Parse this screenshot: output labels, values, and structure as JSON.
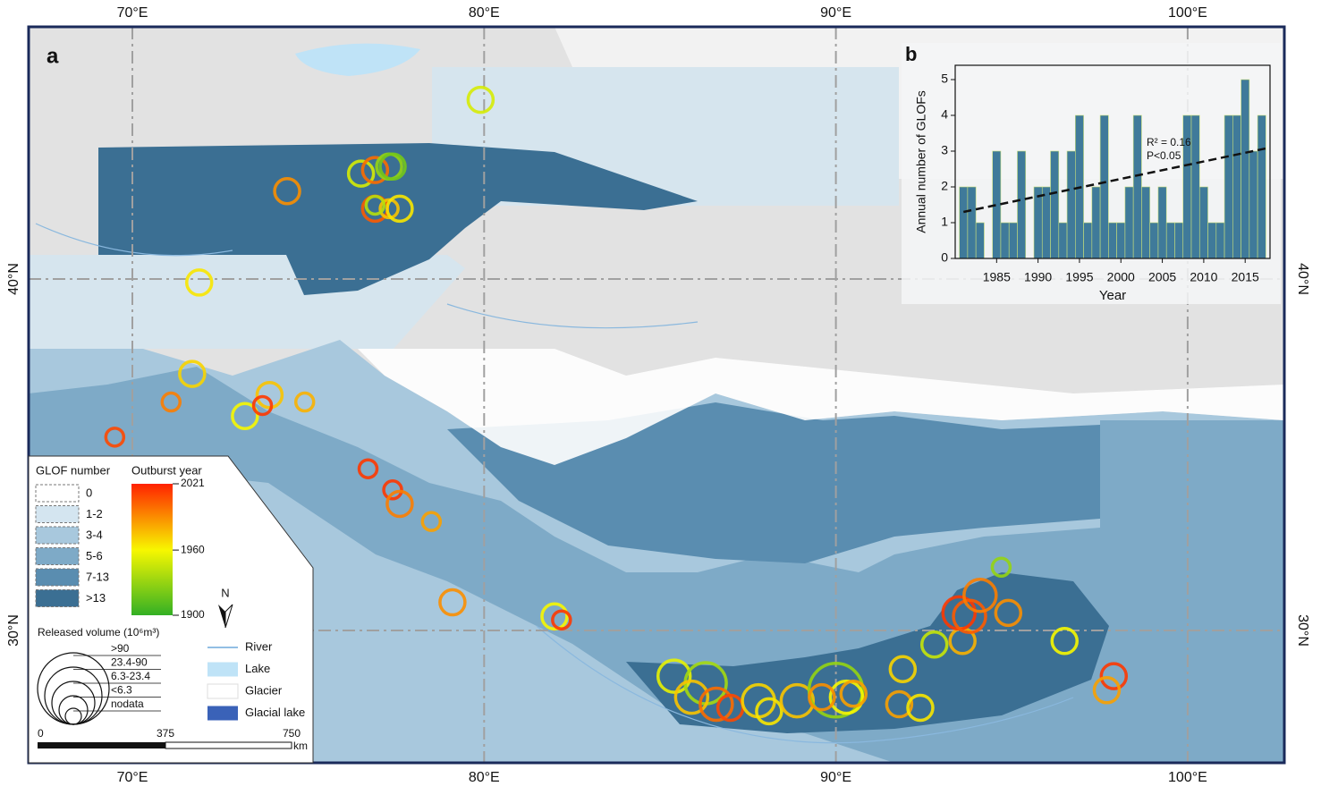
{
  "map": {
    "panel_label": "a",
    "lon_ticks": [
      {
        "value": 70,
        "label": "70°E"
      },
      {
        "value": 80,
        "label": "80°E"
      },
      {
        "value": 90,
        "label": "90°E"
      },
      {
        "value": 100,
        "label": "100°E"
      }
    ],
    "lat_ticks": [
      {
        "value": 40,
        "label": "40°N"
      },
      {
        "value": 30,
        "label": "30°N"
      }
    ],
    "glof_number": {
      "title": "GLOF number",
      "classes": [
        "0",
        "1-2",
        "3-4",
        "5-6",
        "7-13",
        ">13"
      ],
      "colors": [
        "#ffffff",
        "#d4e5f0",
        "#a8c8dd",
        "#7eaac7",
        "#5a8db0",
        "#3b6f93"
      ]
    },
    "colorbar": {
      "title": "Outburst year",
      "ticks": [
        2021,
        1960,
        1900
      ],
      "colors": [
        "#ff2200",
        "#f7f700",
        "#33b024"
      ]
    },
    "volume": {
      "title": "Released volume (10⁶m³)",
      "classes": [
        ">90",
        "23.4-90",
        "6.3-23.4",
        "<6.3",
        "nodata"
      ]
    },
    "layers": [
      {
        "name": "River",
        "color": "#6fa8dc"
      },
      {
        "name": "Lake",
        "color": "#bfe3f7"
      },
      {
        "name": "Glacier",
        "color": "#ffffff"
      },
      {
        "name": "Glacial lake",
        "color": "#3a62b8"
      }
    ],
    "north": "N",
    "scale": {
      "ticks": [
        "0",
        "375",
        "750"
      ],
      "unit": "km"
    },
    "glofs": [
      {
        "lon": 79.9,
        "lat": 45.1,
        "year": 1950,
        "volume": "<6.3"
      },
      {
        "lon": 74.4,
        "lat": 42.5,
        "year": 1990,
        "volume": "<6.3"
      },
      {
        "lon": 76.5,
        "lat": 43.0,
        "year": 1950,
        "volume": "<6.3"
      },
      {
        "lon": 76.9,
        "lat": 43.1,
        "year": 2000,
        "volume": "<6.3"
      },
      {
        "lon": 77.3,
        "lat": 43.2,
        "year": 1930,
        "volume": "<6.3"
      },
      {
        "lon": 77.4,
        "lat": 43.2,
        "year": 1920,
        "volume": "<6.3"
      },
      {
        "lon": 76.9,
        "lat": 42.0,
        "year": 2005,
        "volume": "<6.3"
      },
      {
        "lon": 77.3,
        "lat": 42.0,
        "year": 1975,
        "volume": "nodata"
      },
      {
        "lon": 77.6,
        "lat": 42.0,
        "year": 1965,
        "volume": "<6.3"
      },
      {
        "lon": 76.9,
        "lat": 42.1,
        "year": 1940,
        "volume": "nodata"
      },
      {
        "lon": 71.9,
        "lat": 39.9,
        "year": 1965,
        "volume": "<6.3"
      },
      {
        "lon": 71.7,
        "lat": 37.3,
        "year": 1970,
        "volume": "<6.3"
      },
      {
        "lon": 71.1,
        "lat": 36.5,
        "year": 1995,
        "volume": "nodata"
      },
      {
        "lon": 69.5,
        "lat": 35.5,
        "year": 2010,
        "volume": "nodata"
      },
      {
        "lon": 73.9,
        "lat": 36.7,
        "year": 1975,
        "volume": "<6.3"
      },
      {
        "lon": 73.2,
        "lat": 36.1,
        "year": 1960,
        "volume": "<6.3"
      },
      {
        "lon": 73.7,
        "lat": 36.4,
        "year": 2015,
        "volume": "nodata"
      },
      {
        "lon": 74.9,
        "lat": 36.5,
        "year": 1980,
        "volume": "nodata"
      },
      {
        "lon": 76.7,
        "lat": 34.6,
        "year": 2015,
        "volume": "nodata"
      },
      {
        "lon": 77.4,
        "lat": 34.0,
        "year": 2015,
        "volume": "nodata"
      },
      {
        "lon": 77.6,
        "lat": 33.6,
        "year": 1995,
        "volume": "<6.3"
      },
      {
        "lon": 78.5,
        "lat": 33.1,
        "year": 1985,
        "volume": "nodata"
      },
      {
        "lon": 79.1,
        "lat": 30.8,
        "year": 1990,
        "volume": "<6.3"
      },
      {
        "lon": 82.0,
        "lat": 30.4,
        "year": 1960,
        "volume": "<6.3"
      },
      {
        "lon": 82.2,
        "lat": 30.3,
        "year": 2015,
        "volume": "nodata"
      },
      {
        "lon": 85.4,
        "lat": 28.7,
        "year": 1955,
        "volume": "6.3-23.4"
      },
      {
        "lon": 86.3,
        "lat": 28.5,
        "year": 1935,
        "volume": "23.4-90"
      },
      {
        "lon": 85.9,
        "lat": 28.1,
        "year": 1975,
        "volume": "6.3-23.4"
      },
      {
        "lon": 86.6,
        "lat": 27.9,
        "year": 2000,
        "volume": "6.3-23.4"
      },
      {
        "lon": 87.0,
        "lat": 27.8,
        "year": 2010,
        "volume": "<6.3"
      },
      {
        "lon": 87.8,
        "lat": 28.0,
        "year": 1970,
        "volume": "6.3-23.4"
      },
      {
        "lon": 88.1,
        "lat": 27.7,
        "year": 1965,
        "volume": "<6.3"
      },
      {
        "lon": 88.9,
        "lat": 28.0,
        "year": 1975,
        "volume": "6.3-23.4"
      },
      {
        "lon": 90.0,
        "lat": 28.3,
        "year": 1930,
        "volume": ">90"
      },
      {
        "lon": 90.3,
        "lat": 28.1,
        "year": 1960,
        "volume": "6.3-23.4"
      },
      {
        "lon": 90.5,
        "lat": 28.2,
        "year": 1985,
        "volume": "<6.3"
      },
      {
        "lon": 89.6,
        "lat": 28.1,
        "year": 1990,
        "volume": "<6.3"
      },
      {
        "lon": 91.9,
        "lat": 28.9,
        "year": 1970,
        "volume": "<6.3"
      },
      {
        "lon": 91.8,
        "lat": 27.9,
        "year": 1985,
        "volume": "<6.3"
      },
      {
        "lon": 92.4,
        "lat": 27.8,
        "year": 1965,
        "volume": "<6.3"
      },
      {
        "lon": 92.8,
        "lat": 29.6,
        "year": 1945,
        "volume": "<6.3"
      },
      {
        "lon": 93.6,
        "lat": 29.7,
        "year": 1980,
        "volume": "<6.3"
      },
      {
        "lon": 93.5,
        "lat": 30.5,
        "year": 2015,
        "volume": "6.3-23.4"
      },
      {
        "lon": 93.8,
        "lat": 30.4,
        "year": 2005,
        "volume": "6.3-23.4"
      },
      {
        "lon": 94.1,
        "lat": 31.0,
        "year": 1995,
        "volume": "6.3-23.4"
      },
      {
        "lon": 94.9,
        "lat": 30.5,
        "year": 1990,
        "volume": "<6.3"
      },
      {
        "lon": 94.7,
        "lat": 31.8,
        "year": 1930,
        "volume": "nodata"
      },
      {
        "lon": 96.5,
        "lat": 29.7,
        "year": 1960,
        "volume": "<6.3"
      },
      {
        "lon": 97.9,
        "lat": 28.7,
        "year": 2015,
        "volume": "<6.3"
      },
      {
        "lon": 97.7,
        "lat": 28.3,
        "year": 1985,
        "volume": "<6.3"
      }
    ]
  },
  "chart_data": {
    "type": "bar",
    "panel_label": "b",
    "y_label": "Annual number of GLOFs",
    "x_label": "Year",
    "x": [
      1981,
      1982,
      1983,
      1984,
      1985,
      1986,
      1987,
      1988,
      1989,
      1990,
      1991,
      1992,
      1993,
      1994,
      1995,
      1996,
      1997,
      1998,
      1999,
      2000,
      2001,
      2002,
      2003,
      2004,
      2005,
      2006,
      2007,
      2008,
      2009,
      2010,
      2011,
      2012,
      2013,
      2014,
      2015,
      2016,
      2017
    ],
    "values": [
      2,
      2,
      1,
      0,
      3,
      1,
      1,
      3,
      0,
      2,
      2,
      3,
      1,
      3,
      4,
      1,
      2,
      4,
      1,
      1,
      2,
      4,
      2,
      1,
      2,
      1,
      1,
      4,
      4,
      2,
      1,
      1,
      4,
      4,
      5,
      3,
      4
    ],
    "color": "#3f7a9a",
    "xlim": [
      1980,
      2018
    ],
    "xticks": [
      1985,
      1990,
      1995,
      2000,
      2005,
      2010,
      2015
    ],
    "ylim": [
      0,
      5.4
    ],
    "yticks": [
      0,
      1,
      2,
      3,
      4,
      5
    ],
    "trend": {
      "x": [
        1981,
        2018
      ],
      "y": [
        1.3,
        3.1
      ]
    },
    "annotations": [
      "R² = 0.16",
      "P<0.05"
    ]
  }
}
